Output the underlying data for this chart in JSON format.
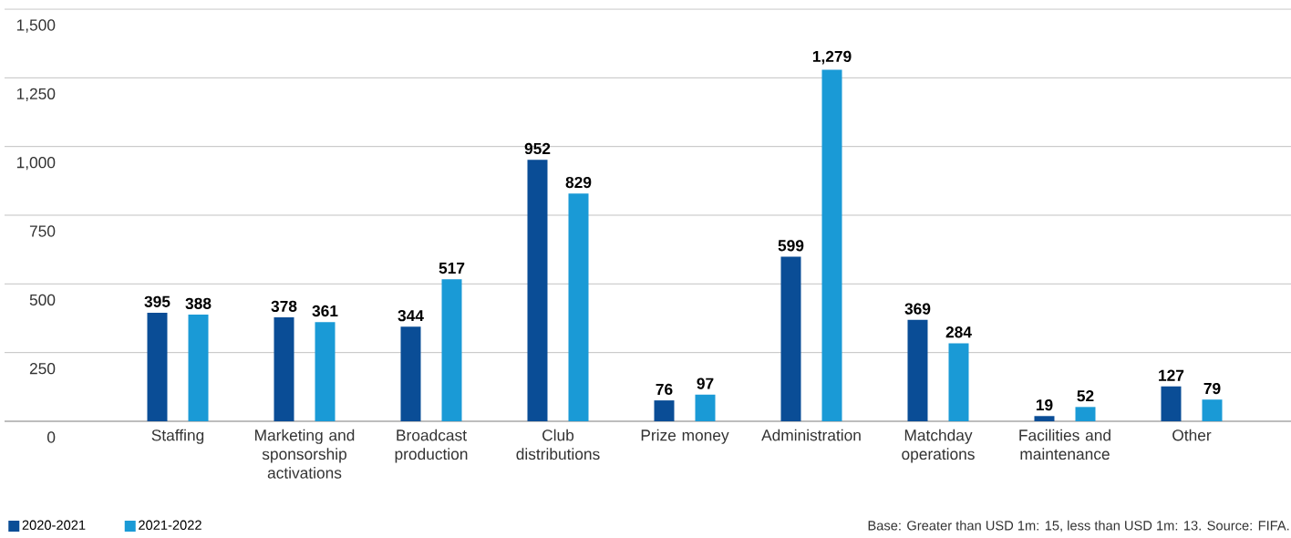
{
  "chart_data": {
    "type": "bar",
    "categories": [
      "Staffing",
      "Marketing and sponsorship activations",
      "Broadcast production",
      "Club distributions",
      "Prize money",
      "Administration",
      "Matchday operations",
      "Facilities and maintenance",
      "Other"
    ],
    "series": [
      {
        "name": "2020-2021",
        "color": "#0a4d96",
        "values": [
          395,
          378,
          344,
          952,
          76,
          599,
          369,
          19,
          127
        ],
        "value_labels": [
          "395",
          "378",
          "344",
          "952",
          "76",
          "599",
          "369",
          "19",
          "127"
        ]
      },
      {
        "name": "2021-2022",
        "color": "#1a9ad6",
        "values": [
          388,
          361,
          517,
          829,
          97,
          1279,
          284,
          52,
          79
        ],
        "value_labels": [
          "388",
          "361",
          "517",
          "829",
          "97",
          "1,279",
          "284",
          "52",
          "79"
        ]
      }
    ],
    "ylim": [
      0,
      1500
    ],
    "yticks": [
      0,
      250,
      {
        "value": 500,
        "label": "500"
      },
      {
        "value": 750,
        "label": "750"
      },
      {
        "value": 1000,
        "label": "1,000"
      },
      {
        "value": 1250,
        "label": "1,250"
      },
      {
        "value": 1500,
        "label": "1,500"
      }
    ],
    "grid": "y",
    "legend": "bottom left",
    "annotations": [
      "Base: Greater than USD 1m: 15, less than USD 1m: 13. Source: FIFA."
    ]
  }
}
